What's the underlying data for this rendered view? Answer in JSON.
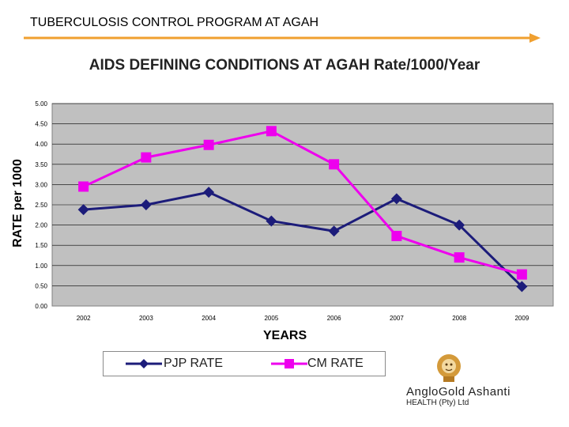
{
  "slide": {
    "title": "TUBERCULOSIS CONTROL PROGRAM AT AGAH",
    "accent_color": "#f0a030"
  },
  "chart_data": {
    "type": "line",
    "title": "AIDS DEFINING CONDITIONS AT AGAH Rate/1000/Year",
    "xlabel": "YEARS",
    "ylabel": "RATE per 1000",
    "categories": [
      "2002",
      "2003",
      "2004",
      "2005",
      "2006",
      "2007",
      "2008",
      "2009"
    ],
    "ylim": [
      0,
      5
    ],
    "yticks": [
      "0.00",
      "0.50",
      "1.00",
      "1.50",
      "2.00",
      "2.50",
      "3.00",
      "3.50",
      "4.00",
      "4.50",
      "5.00"
    ],
    "grid": true,
    "plot_background": "#c0c0c0",
    "legend_position": "bottom",
    "series": [
      {
        "name": "PJP RATE",
        "color": "#1c1c7a",
        "marker": "diamond",
        "values": [
          2.38,
          2.5,
          2.81,
          2.1,
          1.85,
          2.65,
          2.0,
          0.48
        ]
      },
      {
        "name": "CM RATE",
        "color": "#ee00ee",
        "marker": "square",
        "values": [
          2.95,
          3.67,
          3.98,
          4.32,
          3.5,
          1.73,
          1.2,
          0.78
        ]
      }
    ]
  },
  "logo": {
    "brand": "AngloGold Ashanti",
    "subtitle": "HEALTH (Pty) Ltd",
    "icon": "lion-icon"
  }
}
